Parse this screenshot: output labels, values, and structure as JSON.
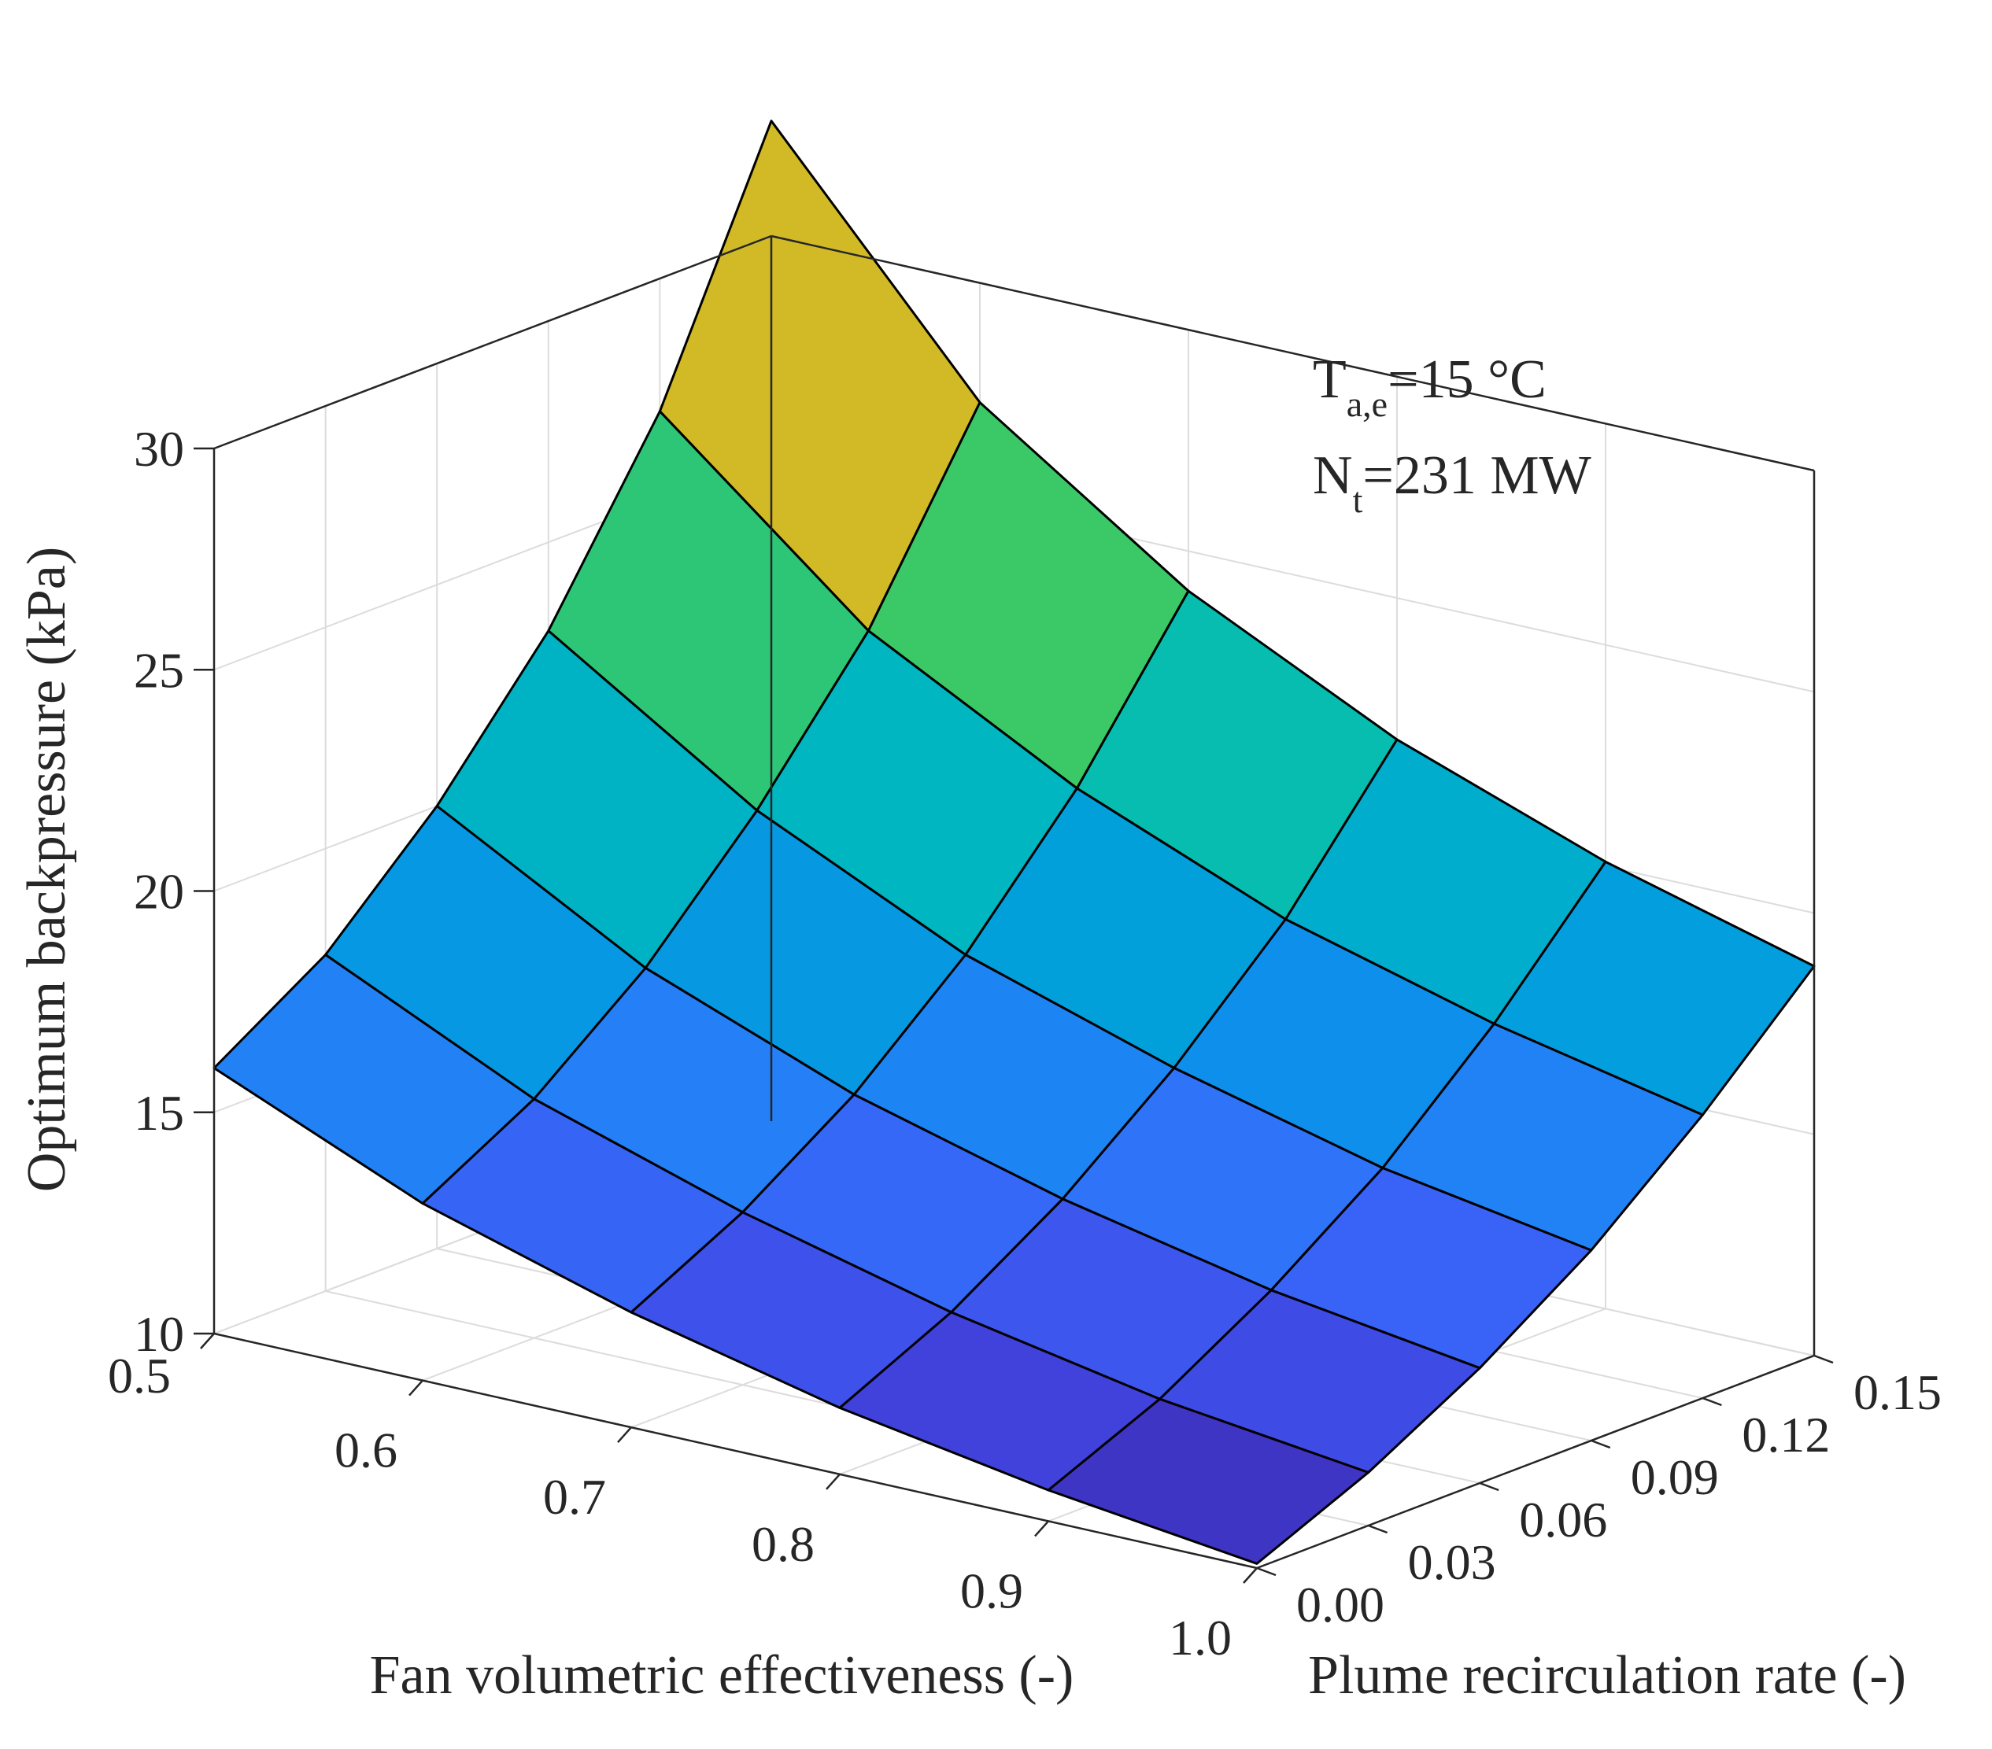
{
  "chart_data": {
    "type": "surface",
    "title": "",
    "xlabel": "Fan volumetric effectiveness (-)",
    "ylabel": "Plume recirculation rate (-)",
    "zlabel": "Optimum backpressure (kPa)",
    "x": [
      0.5,
      0.6,
      0.7,
      0.8,
      0.9,
      1.0
    ],
    "y": [
      0.0,
      0.03,
      0.06,
      0.09,
      0.12,
      0.15
    ],
    "xlim": [
      0.5,
      1.0
    ],
    "ylim": [
      0.0,
      0.15
    ],
    "zlim": [
      10,
      30
    ],
    "xticks": [
      "0.5",
      "0.6",
      "0.7",
      "0.8",
      "0.9",
      "1.0"
    ],
    "yticks": [
      "0.00",
      "0.03",
      "0.06",
      "0.09",
      "0.12",
      "0.15"
    ],
    "zticks": [
      "10",
      "15",
      "20",
      "25",
      "30"
    ],
    "z": [
      [
        16.0,
        14.0,
        12.6,
        11.5,
        10.7,
        10.1
      ],
      [
        17.6,
        15.4,
        13.9,
        12.7,
        11.8,
        11.2
      ],
      [
        20.0,
        17.4,
        15.6,
        14.3,
        13.3,
        12.6
      ],
      [
        23.0,
        20.0,
        17.8,
        16.3,
        15.1,
        14.3
      ],
      [
        27.0,
        23.1,
        20.6,
        18.7,
        17.4,
        16.4
      ],
      [
        32.6,
        27.3,
        24.1,
        21.8,
        20.1,
        18.8
      ]
    ],
    "colormap": [
      "#3e26a8",
      "#4145e0",
      "#3a5ef5",
      "#2a7cf9",
      "#0a91ea",
      "#00a5d6",
      "#00b7bf",
      "#0ec39c",
      "#40c860",
      "#8dc738",
      "#cfba26",
      "#f9b82c",
      "#fcd52d",
      "#f9fb15"
    ],
    "annotation": {
      "line1_main": "T",
      "line1_sub": "a,e",
      "line1_rest": "=15 °C",
      "line2_main": "N",
      "line2_sub": "t",
      "line2_rest": "=231 MW"
    }
  }
}
